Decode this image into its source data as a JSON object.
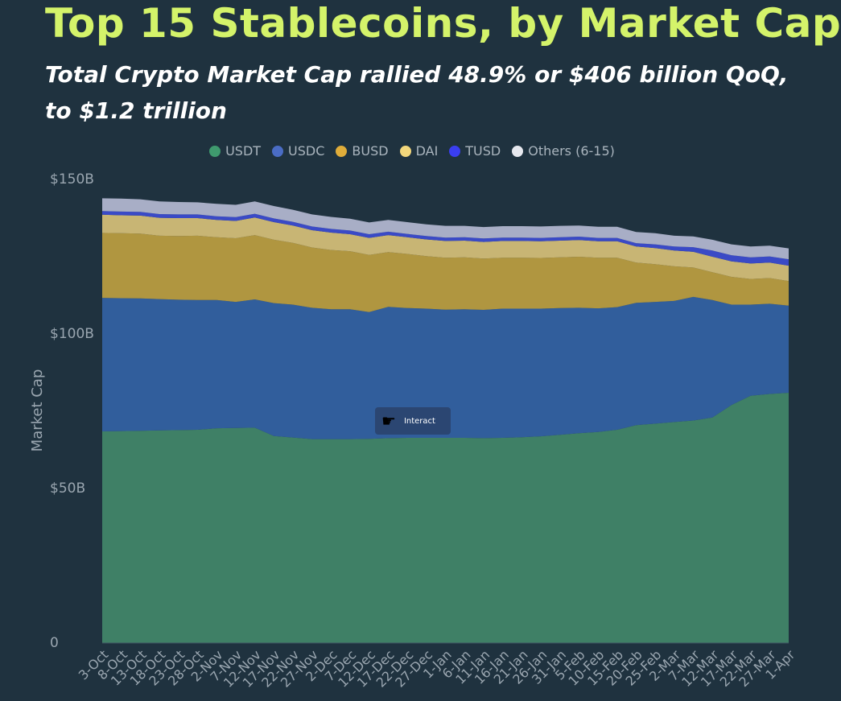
{
  "title": "Top 15 Stablecoins, by Market Cap",
  "subtitle": "Total Crypto Market Cap rallied 48.9% or $406 billion QoQ, to $1.2 trillion",
  "interact": {
    "icon": "hand-pointer-icon",
    "label": "Interact"
  },
  "colors": {
    "background": "#1f323f",
    "title": "#d4f36a",
    "USDT": "#3f8066",
    "USDC": "#315e9c",
    "BUSD": "#b09640",
    "DAI": "#c8b574",
    "TUSD": "#3a4ac6",
    "Others": "#a8aec6"
  },
  "chart_data": {
    "type": "area",
    "stacked": true,
    "ylabel": "Market Cap",
    "xlabel": "",
    "ylim": [
      0,
      150
    ],
    "yticks": [
      0,
      50,
      100,
      150
    ],
    "ytick_labels": [
      "0",
      "$50B",
      "$100B",
      "$150B"
    ],
    "grid": false,
    "legend_position": "top-center",
    "x": [
      "3-Oct",
      "8-Oct",
      "13-Oct",
      "18-Oct",
      "23-Oct",
      "28-Oct",
      "2-Nov",
      "7-Nov",
      "12-Nov",
      "17-Nov",
      "22-Nov",
      "27-Nov",
      "2-Dec",
      "7-Dec",
      "12-Dec",
      "17-Dec",
      "22-Dec",
      "27-Dec",
      "1-Jan",
      "6-Jan",
      "11-Jan",
      "16-Jan",
      "21-Jan",
      "26-Jan",
      "31-Jan",
      "5-Feb",
      "10-Feb",
      "15-Feb",
      "20-Feb",
      "25-Feb",
      "2-Mar",
      "7-Mar",
      "12-Mar",
      "17-Mar",
      "22-Mar",
      "27-Mar",
      "1-Apr"
    ],
    "series": [
      {
        "name": "USDT",
        "values": [
          68.5,
          68.6,
          68.7,
          68.8,
          68.9,
          69.0,
          69.5,
          69.6,
          69.7,
          67.0,
          66.5,
          66.0,
          66.0,
          66.0,
          66.1,
          66.3,
          66.4,
          66.4,
          66.4,
          66.4,
          66.3,
          66.4,
          66.6,
          66.9,
          67.4,
          67.9,
          68.3,
          69.0,
          70.5,
          71.0,
          71.5,
          72.0,
          73.0,
          77.0,
          80.0,
          80.6,
          81.0
        ]
      },
      {
        "name": "USDC",
        "values": [
          43.2,
          43.0,
          42.8,
          42.5,
          42.2,
          42.0,
          41.5,
          40.8,
          41.5,
          43.0,
          43.0,
          42.5,
          42.0,
          42.0,
          41.0,
          42.5,
          42.0,
          41.8,
          41.5,
          41.6,
          41.5,
          41.8,
          41.6,
          41.3,
          41.0,
          40.6,
          40.0,
          39.7,
          39.6,
          39.4,
          39.2,
          40.0,
          38.0,
          32.5,
          29.5,
          29.2,
          28.2
        ]
      },
      {
        "name": "BUSD",
        "values": [
          21.0,
          21.0,
          21.0,
          20.5,
          20.6,
          20.8,
          20.3,
          20.6,
          20.8,
          20.5,
          20.0,
          19.5,
          19.2,
          18.8,
          18.5,
          17.7,
          17.5,
          17.0,
          16.8,
          16.8,
          16.6,
          16.5,
          16.5,
          16.4,
          16.4,
          16.5,
          16.4,
          16.0,
          13.0,
          12.2,
          11.2,
          9.5,
          9.0,
          9.0,
          8.3,
          8.3,
          7.9
        ]
      },
      {
        "name": "DAI",
        "values": [
          5.9,
          5.8,
          5.8,
          5.8,
          5.8,
          5.7,
          5.6,
          5.6,
          5.7,
          5.7,
          5.6,
          5.6,
          5.6,
          5.5,
          5.5,
          5.5,
          5.4,
          5.4,
          5.4,
          5.4,
          5.4,
          5.4,
          5.4,
          5.4,
          5.4,
          5.4,
          5.3,
          5.3,
          5.2,
          5.2,
          5.1,
          5.1,
          5.0,
          5.0,
          5.0,
          5.0,
          5.0
        ]
      },
      {
        "name": "TUSD",
        "values": [
          1.2,
          1.2,
          1.2,
          1.2,
          1.2,
          1.2,
          1.2,
          1.2,
          1.2,
          1.2,
          1.2,
          1.2,
          1.2,
          1.2,
          1.2,
          1.1,
          1.1,
          1.1,
          1.1,
          1.1,
          1.1,
          1.1,
          1.1,
          1.1,
          1.1,
          1.1,
          1.1,
          1.1,
          1.1,
          1.2,
          1.3,
          1.5,
          2.0,
          2.0,
          2.0,
          2.0,
          2.1
        ]
      },
      {
        "name": "Others (6-15)",
        "values": [
          4.1,
          4.2,
          4.1,
          4.1,
          4.0,
          3.9,
          4.0,
          4.0,
          4.0,
          4.0,
          3.9,
          3.9,
          3.9,
          3.8,
          3.8,
          3.8,
          3.8,
          3.8,
          3.8,
          3.7,
          3.7,
          3.7,
          3.7,
          3.7,
          3.7,
          3.6,
          3.6,
          3.6,
          3.6,
          3.6,
          3.5,
          3.5,
          3.5,
          3.5,
          3.5,
          3.5,
          3.5
        ]
      }
    ]
  }
}
